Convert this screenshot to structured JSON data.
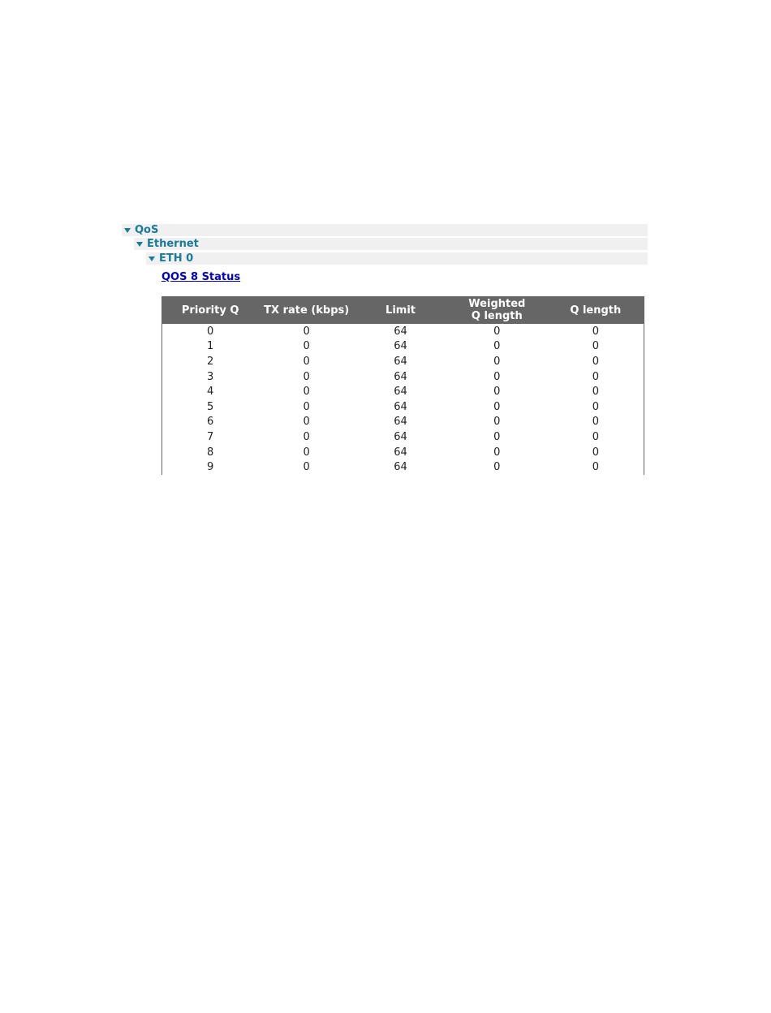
{
  "tree": [
    {
      "label": "QoS",
      "expanded": true
    },
    {
      "label": "Ethernet",
      "expanded": true
    },
    {
      "label": "ETH 0",
      "expanded": true
    }
  ],
  "link": "QOS 8 Status",
  "table": {
    "headers": [
      "Priority Q",
      "TX rate (kbps)",
      "Limit",
      "Weighted\nQ length",
      "Q length"
    ],
    "rows": [
      [
        "0",
        "0",
        "64",
        "0",
        "0"
      ],
      [
        "1",
        "0",
        "64",
        "0",
        "0"
      ],
      [
        "2",
        "0",
        "64",
        "0",
        "0"
      ],
      [
        "3",
        "0",
        "64",
        "0",
        "0"
      ],
      [
        "4",
        "0",
        "64",
        "0",
        "0"
      ],
      [
        "5",
        "0",
        "64",
        "0",
        "0"
      ],
      [
        "6",
        "0",
        "64",
        "0",
        "0"
      ],
      [
        "7",
        "0",
        "64",
        "0",
        "0"
      ],
      [
        "8",
        "0",
        "64",
        "0",
        "0"
      ],
      [
        "9",
        "0",
        "64",
        "0",
        "0"
      ]
    ]
  }
}
